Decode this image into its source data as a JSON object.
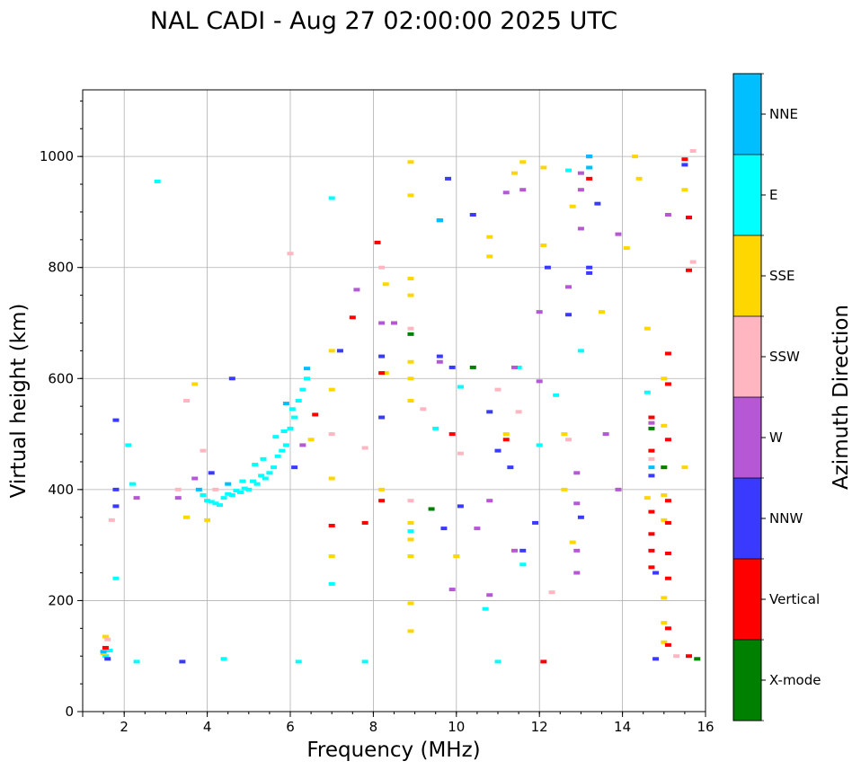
{
  "chart_data": {
    "type": "scatter",
    "title": "NAL CADI - Aug 27 02:00:00 2025 UTC",
    "xlabel": "Frequency (MHz)",
    "ylabel": "Virtual height (km)",
    "xlim": [
      1,
      16
    ],
    "ylim": [
      0,
      1120
    ],
    "xticks": [
      2,
      4,
      6,
      8,
      10,
      12,
      14,
      16
    ],
    "yticks": [
      0,
      200,
      400,
      600,
      800,
      1000
    ],
    "grid": true,
    "colorbar": {
      "label": "Azimuth Direction",
      "categories": [
        {
          "name": "X-mode",
          "color": "#008000"
        },
        {
          "name": "Vertical",
          "color": "#ff0000"
        },
        {
          "name": "NNW",
          "color": "#3a3aff"
        },
        {
          "name": "W",
          "color": "#b657d6"
        },
        {
          "name": "SSW",
          "color": "#ffb6c1"
        },
        {
          "name": "SSE",
          "color": "#ffd700"
        },
        {
          "name": "E",
          "color": "#00ffff"
        },
        {
          "name": "NNE",
          "color": "#00bfff"
        }
      ]
    },
    "series": [
      {
        "name": "E",
        "points": [
          [
            4.0,
            380
          ],
          [
            4.2,
            375
          ],
          [
            4.4,
            385
          ],
          [
            4.6,
            390
          ],
          [
            4.8,
            395
          ],
          [
            5.0,
            400
          ],
          [
            5.2,
            410
          ],
          [
            5.4,
            420
          ],
          [
            5.6,
            440
          ],
          [
            5.8,
            470
          ],
          [
            6.0,
            510
          ],
          [
            6.2,
            560
          ],
          [
            6.4,
            600
          ],
          [
            3.9,
            390
          ],
          [
            4.3,
            372
          ],
          [
            4.7,
            398
          ],
          [
            5.1,
            415
          ],
          [
            5.5,
            430
          ],
          [
            5.9,
            480
          ],
          [
            6.1,
            530
          ],
          [
            4.1,
            378
          ],
          [
            4.9,
            402
          ],
          [
            5.3,
            425
          ],
          [
            5.7,
            460
          ],
          [
            6.3,
            580
          ],
          [
            4.5,
            392
          ],
          [
            5.15,
            445
          ],
          [
            5.65,
            495
          ],
          [
            6.05,
            545
          ],
          [
            4.85,
            415
          ],
          [
            5.35,
            455
          ],
          [
            5.85,
            505
          ],
          [
            1.55,
            100
          ],
          [
            1.65,
            110
          ],
          [
            2.3,
            90
          ],
          [
            4.4,
            95
          ],
          [
            6.2,
            90
          ],
          [
            7.0,
            230
          ],
          [
            7.0,
            925
          ],
          [
            7.8,
            90
          ],
          [
            2.8,
            955
          ],
          [
            9.5,
            510
          ],
          [
            10.1,
            585
          ],
          [
            10.7,
            185
          ],
          [
            11.0,
            90
          ],
          [
            11.6,
            265
          ],
          [
            12.0,
            480
          ],
          [
            12.4,
            570
          ],
          [
            12.7,
            975
          ],
          [
            13.0,
            650
          ],
          [
            14.6,
            575
          ],
          [
            14.7,
            470
          ],
          [
            11.5,
            620
          ],
          [
            8.9,
            325
          ],
          [
            2.1,
            480
          ],
          [
            2.2,
            410
          ],
          [
            1.8,
            240
          ]
        ]
      },
      {
        "name": "SSE",
        "points": [
          [
            1.5,
            105
          ],
          [
            1.55,
            135
          ],
          [
            3.5,
            350
          ],
          [
            3.7,
            590
          ],
          [
            4.0,
            345
          ],
          [
            6.5,
            490
          ],
          [
            7.0,
            420
          ],
          [
            7.0,
            580
          ],
          [
            7.0,
            650
          ],
          [
            7.0,
            280
          ],
          [
            8.2,
            400
          ],
          [
            8.3,
            610
          ],
          [
            8.3,
            770
          ],
          [
            8.9,
            990
          ],
          [
            8.9,
            930
          ],
          [
            8.9,
            780
          ],
          [
            8.9,
            750
          ],
          [
            8.9,
            630
          ],
          [
            8.9,
            600
          ],
          [
            8.9,
            560
          ],
          [
            8.9,
            340
          ],
          [
            8.9,
            310
          ],
          [
            8.9,
            280
          ],
          [
            8.9,
            195
          ],
          [
            8.9,
            145
          ],
          [
            10.0,
            280
          ],
          [
            10.8,
            855
          ],
          [
            10.8,
            820
          ],
          [
            11.2,
            500
          ],
          [
            11.4,
            970
          ],
          [
            11.6,
            990
          ],
          [
            12.1,
            980
          ],
          [
            12.1,
            840
          ],
          [
            12.6,
            500
          ],
          [
            12.6,
            400
          ],
          [
            12.8,
            910
          ],
          [
            12.8,
            305
          ],
          [
            13.5,
            720
          ],
          [
            14.1,
            835
          ],
          [
            14.3,
            1000
          ],
          [
            14.4,
            960
          ],
          [
            14.6,
            690
          ],
          [
            14.6,
            385
          ],
          [
            15.0,
            600
          ],
          [
            15.0,
            515
          ],
          [
            15.0,
            440
          ],
          [
            15.0,
            390
          ],
          [
            15.0,
            345
          ],
          [
            15.0,
            205
          ],
          [
            15.0,
            160
          ],
          [
            15.0,
            125
          ],
          [
            15.5,
            940
          ],
          [
            15.5,
            440
          ]
        ]
      },
      {
        "name": "SSW",
        "points": [
          [
            1.6,
            130
          ],
          [
            1.7,
            345
          ],
          [
            3.3,
            400
          ],
          [
            3.5,
            560
          ],
          [
            3.9,
            470
          ],
          [
            4.2,
            400
          ],
          [
            7.0,
            500
          ],
          [
            7.8,
            475
          ],
          [
            8.2,
            800
          ],
          [
            8.9,
            380
          ],
          [
            8.9,
            690
          ],
          [
            9.2,
            545
          ],
          [
            10.1,
            465
          ],
          [
            11.0,
            580
          ],
          [
            11.5,
            540
          ],
          [
            12.3,
            215
          ],
          [
            12.7,
            490
          ],
          [
            14.7,
            455
          ],
          [
            15.3,
            100
          ],
          [
            15.7,
            1010
          ],
          [
            15.7,
            810
          ],
          [
            6.0,
            825
          ]
        ]
      },
      {
        "name": "W",
        "points": [
          [
            2.3,
            385
          ],
          [
            3.3,
            385
          ],
          [
            3.7,
            420
          ],
          [
            6.3,
            480
          ],
          [
            7.6,
            760
          ],
          [
            8.2,
            700
          ],
          [
            8.5,
            700
          ],
          [
            9.6,
            630
          ],
          [
            9.9,
            220
          ],
          [
            10.5,
            330
          ],
          [
            10.8,
            380
          ],
          [
            10.8,
            210
          ],
          [
            11.2,
            935
          ],
          [
            11.4,
            620
          ],
          [
            11.4,
            290
          ],
          [
            11.6,
            940
          ],
          [
            12.0,
            720
          ],
          [
            12.0,
            595
          ],
          [
            12.7,
            765
          ],
          [
            12.9,
            430
          ],
          [
            12.9,
            375
          ],
          [
            12.9,
            290
          ],
          [
            12.9,
            250
          ],
          [
            13.0,
            970
          ],
          [
            13.0,
            940
          ],
          [
            13.0,
            870
          ],
          [
            13.2,
            1000
          ],
          [
            13.6,
            500
          ],
          [
            13.9,
            860
          ],
          [
            13.9,
            400
          ],
          [
            14.7,
            520
          ],
          [
            15.1,
            895
          ]
        ]
      },
      {
        "name": "NNW",
        "points": [
          [
            1.6,
            95
          ],
          [
            1.8,
            525
          ],
          [
            1.8,
            400
          ],
          [
            1.8,
            370
          ],
          [
            3.4,
            90
          ],
          [
            4.1,
            430
          ],
          [
            4.6,
            600
          ],
          [
            6.1,
            440
          ],
          [
            7.2,
            650
          ],
          [
            8.2,
            640
          ],
          [
            8.2,
            530
          ],
          [
            9.6,
            885
          ],
          [
            9.6,
            640
          ],
          [
            9.7,
            330
          ],
          [
            9.8,
            960
          ],
          [
            9.9,
            620
          ],
          [
            10.1,
            370
          ],
          [
            10.4,
            895
          ],
          [
            10.8,
            540
          ],
          [
            11.0,
            470
          ],
          [
            11.3,
            440
          ],
          [
            11.6,
            290
          ],
          [
            11.9,
            340
          ],
          [
            12.2,
            800
          ],
          [
            12.7,
            715
          ],
          [
            13.0,
            350
          ],
          [
            13.2,
            800
          ],
          [
            13.2,
            790
          ],
          [
            13.4,
            915
          ],
          [
            14.7,
            425
          ],
          [
            14.8,
            250
          ],
          [
            14.8,
            95
          ],
          [
            15.5,
            985
          ],
          [
            15.6,
            890
          ]
        ]
      },
      {
        "name": "Vertical",
        "points": [
          [
            1.55,
            115
          ],
          [
            6.6,
            535
          ],
          [
            7.0,
            335
          ],
          [
            7.5,
            710
          ],
          [
            8.1,
            845
          ],
          [
            8.2,
            610
          ],
          [
            8.2,
            380
          ],
          [
            9.9,
            500
          ],
          [
            11.2,
            490
          ],
          [
            12.1,
            90
          ],
          [
            13.2,
            960
          ],
          [
            14.7,
            260
          ],
          [
            14.7,
            530
          ],
          [
            14.7,
            470
          ],
          [
            14.7,
            360
          ],
          [
            14.7,
            320
          ],
          [
            14.7,
            290
          ],
          [
            15.1,
            645
          ],
          [
            15.1,
            590
          ],
          [
            15.1,
            490
          ],
          [
            15.1,
            380
          ],
          [
            15.1,
            340
          ],
          [
            15.1,
            285
          ],
          [
            15.1,
            240
          ],
          [
            15.1,
            150
          ],
          [
            15.1,
            120
          ],
          [
            15.5,
            995
          ],
          [
            15.6,
            890
          ],
          [
            15.6,
            795
          ],
          [
            15.6,
            100
          ],
          [
            7.8,
            340
          ]
        ]
      },
      {
        "name": "X-mode",
        "points": [
          [
            9.4,
            365
          ],
          [
            10.4,
            620
          ],
          [
            14.7,
            510
          ],
          [
            15.0,
            440
          ],
          [
            15.8,
            95
          ],
          [
            8.9,
            680
          ]
        ]
      },
      {
        "name": "NNE",
        "points": [
          [
            1.5,
            108
          ],
          [
            3.8,
            400
          ],
          [
            4.5,
            410
          ],
          [
            5.9,
            555
          ],
          [
            6.4,
            618
          ],
          [
            9.6,
            885
          ],
          [
            13.2,
            1000
          ],
          [
            13.2,
            980
          ],
          [
            14.7,
            440
          ]
        ]
      }
    ]
  }
}
